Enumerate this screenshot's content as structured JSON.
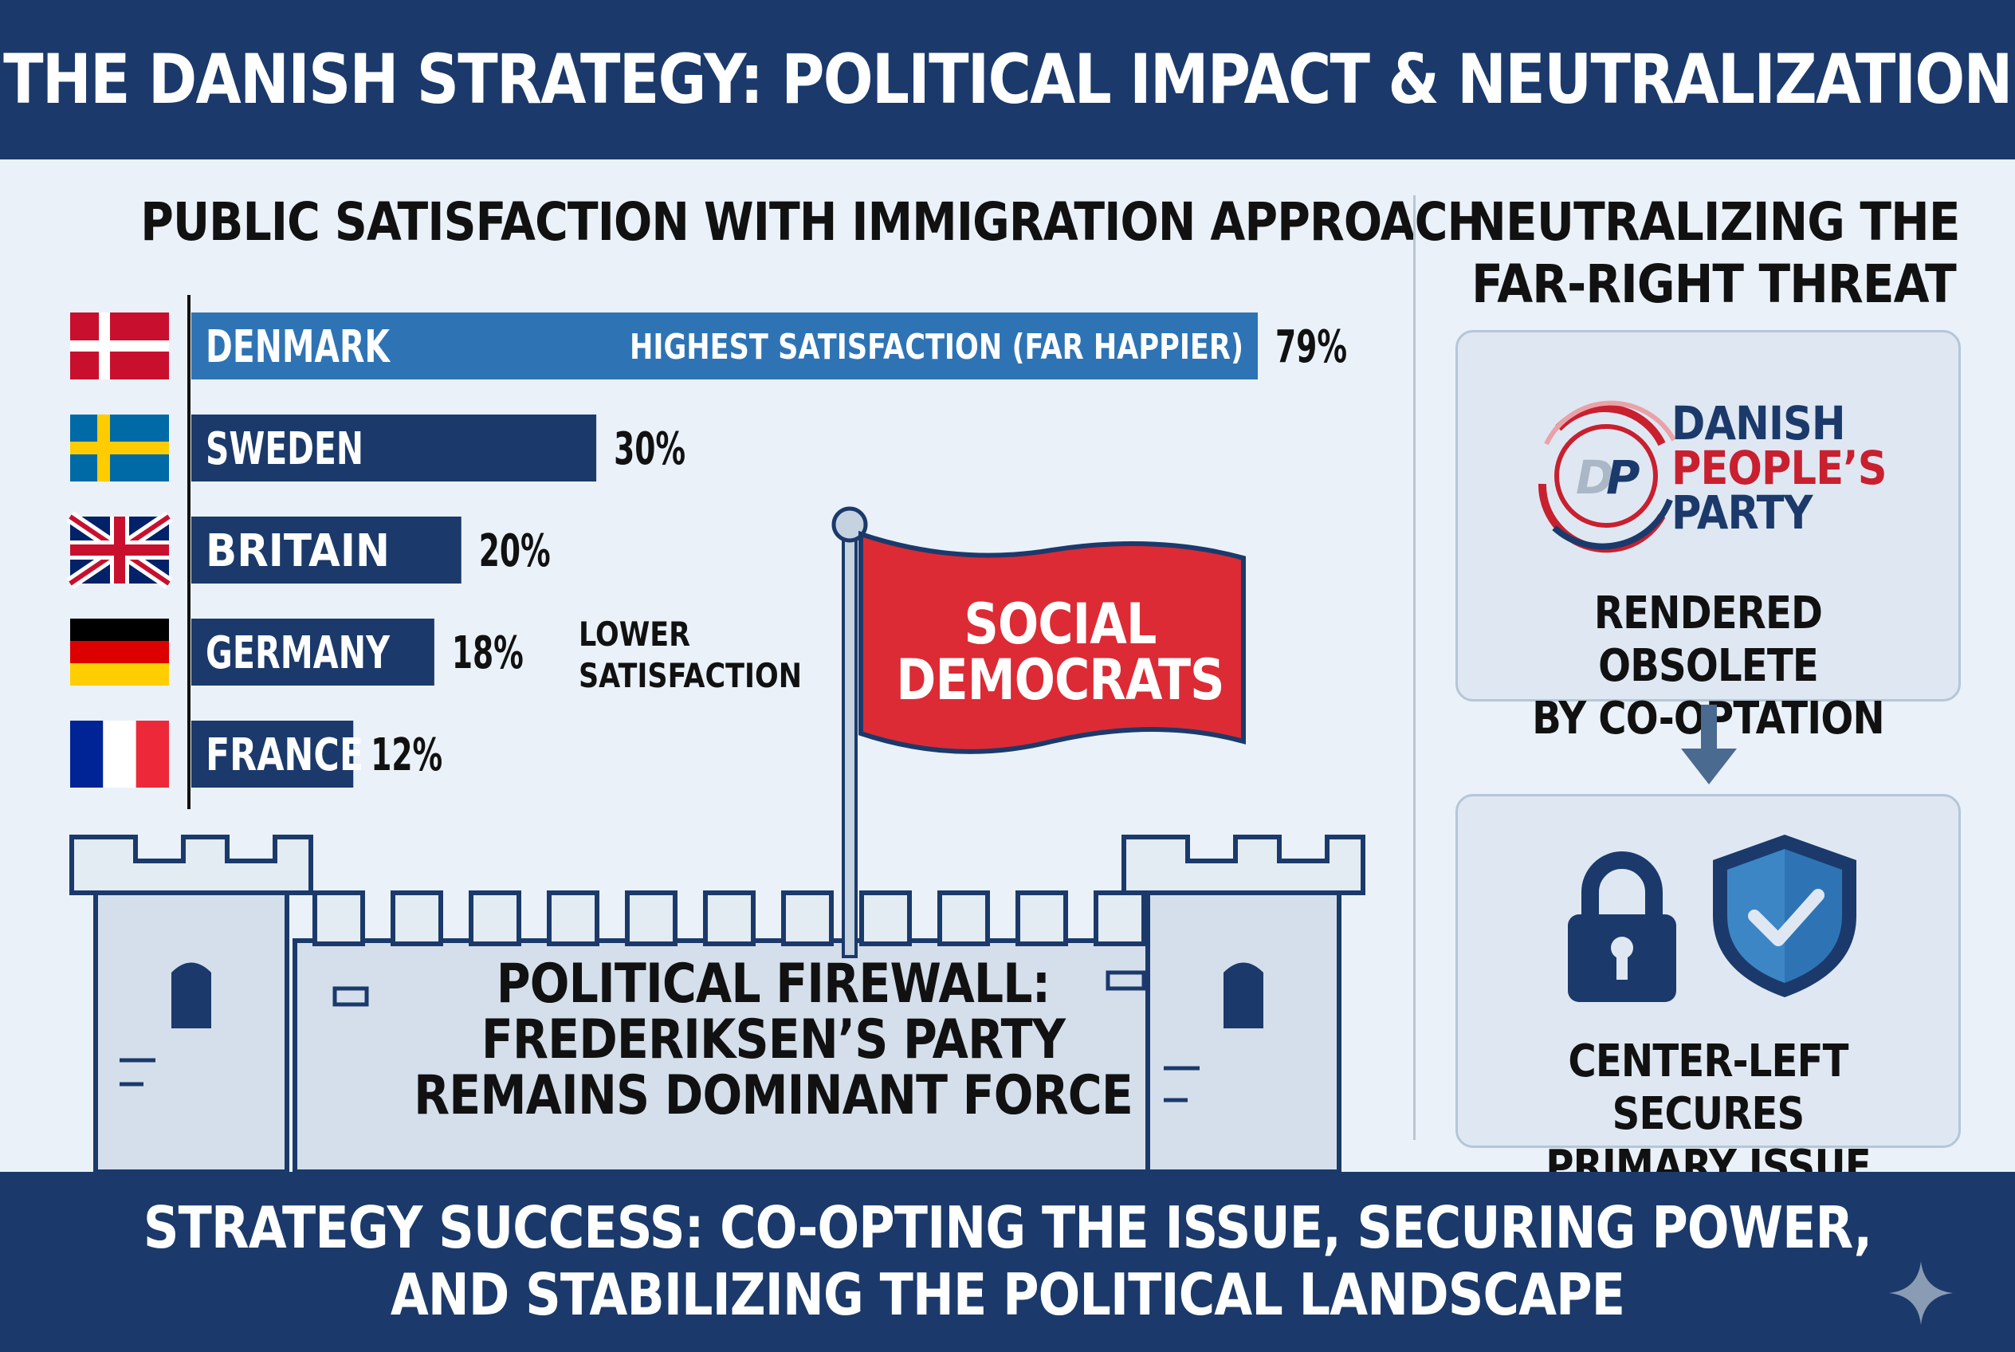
{
  "header": {
    "title": "THE DANISH STRATEGY: POLITICAL IMPACT & NEUTRALIZATION"
  },
  "chart": {
    "title": "PUBLIC SATISFACTION WITH IMMIGRATION APPROACH",
    "highest_note": "HIGHEST SATISFACTION (FAR HAPPIER)",
    "lower_note_line1": "LOWER",
    "lower_note_line2": "SATISFACTION"
  },
  "chart_data": {
    "type": "bar",
    "orientation": "horizontal",
    "title": "PUBLIC SATISFACTION WITH IMMIGRATION APPROACH",
    "categories": [
      "DENMARK",
      "SWEDEN",
      "BRITAIN",
      "GERMANY",
      "FRANCE"
    ],
    "values": [
      79,
      30,
      20,
      18,
      12
    ],
    "value_labels": [
      "79%",
      "30%",
      "20%",
      "18%",
      "12%"
    ],
    "unit": "%",
    "annotations": [
      "HIGHEST SATISFACTION (FAR HAPPIER)",
      "LOWER SATISFACTION"
    ],
    "colors": {
      "highlight": "#2e74b5",
      "default": "#1b3a6b"
    },
    "flags": [
      "denmark-flag",
      "sweden-flag",
      "uk-flag",
      "germany-flag",
      "france-flag"
    ]
  },
  "flag": {
    "line1": "SOCIAL",
    "line2": "DEMOCRATS"
  },
  "firewall": {
    "line1": "POLITICAL FIREWALL:",
    "line2": "FREDERIKSEN’S PARTY",
    "line3": "REMAINS DOMINANT FORCE"
  },
  "right": {
    "title_line1": "NEUTRALIZING THE",
    "title_line2": "FAR-RIGHT THREAT",
    "party_logo_text": "DP",
    "party_line1": "DANISH",
    "party_line2": "PEOPLE’S",
    "party_line3": "PARTY",
    "panel1_line1": "RENDERED OBSOLETE",
    "panel1_line2": "BY CO-OPTATION",
    "panel2_line1": "CENTER-LEFT SECURES",
    "panel2_line2": "PRIMARY ISSUE"
  },
  "footer": {
    "line1": "STRATEGY SUCCESS: CO-OPTING THE ISSUE, SECURING POWER,",
    "line2": "AND STABILIZING THE POLITICAL LANDSCAPE"
  },
  "colors": {
    "navy": "#1b3a6b",
    "blue": "#2e74b5",
    "red": "#dc2b35",
    "background": "#eaf1f8"
  }
}
